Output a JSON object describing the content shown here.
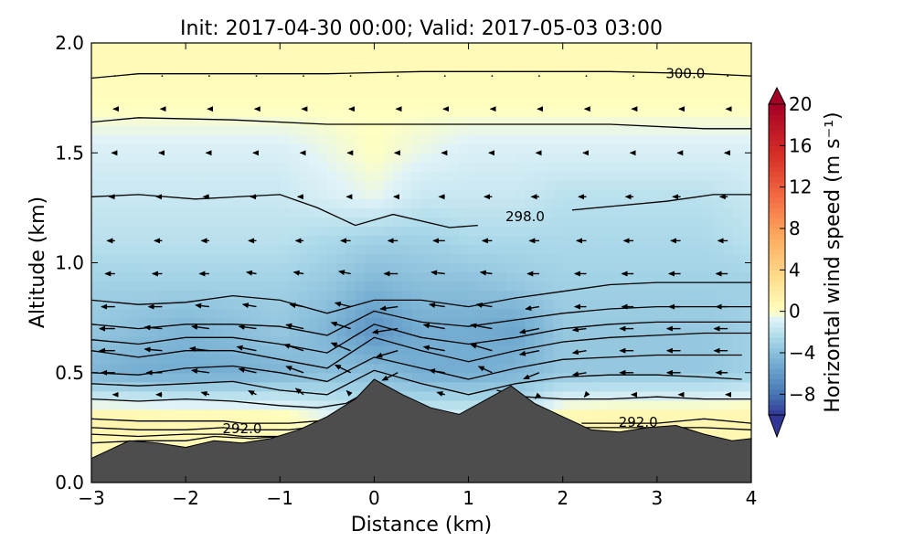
{
  "chart_data": {
    "type": "heatmap",
    "title": "Init: 2017-04-30 00:00; Valid: 2017-05-03 03:00",
    "xlabel": "Distance (km)",
    "ylabel": "Altitude (km)",
    "xlim": [
      -3,
      4
    ],
    "ylim": [
      0.0,
      2.0
    ],
    "x_ticks": [
      -3,
      -2,
      -1,
      0,
      1,
      2,
      3,
      4
    ],
    "x_tick_labels": [
      "−3",
      "−2",
      "−1",
      "0",
      "1",
      "2",
      "3",
      "4"
    ],
    "y_ticks": [
      0.0,
      0.5,
      1.0,
      1.5,
      2.0
    ],
    "y_tick_labels": [
      "0.0",
      "0.5",
      "1.0",
      "1.5",
      "2.0"
    ],
    "colorbar": {
      "label": "Horizontal wind speed (m s⁻¹)",
      "range": [
        -10,
        20
      ],
      "ticks": [
        -8,
        -4,
        0,
        4,
        8,
        12,
        16,
        20
      ],
      "tick_labels": [
        "−8",
        "−4",
        "0",
        "4",
        "8",
        "12",
        "16",
        "20"
      ],
      "colormap": "RdYlBu_r",
      "extend": "both"
    },
    "contour_labels": [
      {
        "text": "300.0",
        "x": 3.3,
        "y": 1.86
      },
      {
        "text": "298.0",
        "x": 1.6,
        "y": 1.21
      },
      {
        "text": "292.0",
        "x": -1.4,
        "y": 0.245
      },
      {
        "text": "292.0",
        "x": 2.8,
        "y": 0.275
      }
    ],
    "terrain": {
      "x": [
        -3,
        -2.8,
        -2.6,
        -2.3,
        -2.0,
        -1.7,
        -1.4,
        -1.1,
        -0.8,
        -0.5,
        -0.2,
        0.0,
        0.3,
        0.6,
        0.9,
        1.2,
        1.45,
        1.7,
        2.0,
        2.3,
        2.6,
        2.9,
        3.2,
        3.5,
        3.8,
        4.0
      ],
      "y": [
        0.11,
        0.15,
        0.19,
        0.18,
        0.16,
        0.19,
        0.18,
        0.2,
        0.24,
        0.3,
        0.38,
        0.47,
        0.4,
        0.34,
        0.31,
        0.38,
        0.44,
        0.36,
        0.3,
        0.24,
        0.23,
        0.25,
        0.26,
        0.22,
        0.19,
        0.2
      ]
    },
    "wind_speed_field": {
      "x": [
        -3,
        -2.5,
        -2,
        -1.5,
        -1,
        -0.5,
        0,
        0.5,
        1,
        1.5,
        2,
        2.5,
        3,
        3.5,
        4
      ],
      "y": [
        0.1,
        0.3,
        0.5,
        0.7,
        0.9,
        1.1,
        1.3,
        1.5,
        1.7,
        1.9
      ],
      "values": [
        [
          0.5,
          0.5,
          0.5,
          0.5,
          0.5,
          0.5,
          0.5,
          0.5,
          0.5,
          0.5,
          0.5,
          0.5,
          0.5,
          0.5,
          0.5
        ],
        [
          1.0,
          1.0,
          0.8,
          0.8,
          0.5,
          -0.5,
          -1.5,
          -1.0,
          -1.0,
          -1.5,
          0.8,
          1.0,
          1.0,
          1.0,
          1.0
        ],
        [
          -4.5,
          -5.0,
          -5.0,
          -5.0,
          -4.5,
          -4.0,
          -4.0,
          -5.0,
          -5.0,
          -4.5,
          -3.5,
          -3.5,
          -3.5,
          -3.5,
          -3.0
        ],
        [
          -3.5,
          -4.0,
          -4.5,
          -4.0,
          -3.5,
          -4.5,
          -6.5,
          -5.0,
          -5.0,
          -5.5,
          -3.5,
          -3.5,
          -3.5,
          -3.5,
          -3.0
        ],
        [
          -3.0,
          -3.0,
          -3.0,
          -3.0,
          -3.0,
          -3.5,
          -4.5,
          -4.0,
          -4.0,
          -3.5,
          -3.0,
          -3.0,
          -3.0,
          -3.0,
          -3.0
        ],
        [
          -2.0,
          -2.0,
          -2.0,
          -2.0,
          -2.0,
          -2.5,
          -3.0,
          -3.0,
          -2.5,
          -2.5,
          -2.5,
          -2.5,
          -2.5,
          -2.5,
          -2.0
        ],
        [
          -1.5,
          -1.5,
          -1.5,
          -1.5,
          -1.5,
          -1.0,
          -0.5,
          -1.5,
          -1.5,
          -1.5,
          -2.0,
          -2.0,
          -2.0,
          -2.0,
          -1.5
        ],
        [
          -1.0,
          -1.0,
          -1.0,
          -1.0,
          -1.0,
          -0.5,
          0.0,
          -0.5,
          -1.0,
          -1.0,
          -1.0,
          -1.0,
          -1.0,
          -1.0,
          -1.0
        ],
        [
          0.0,
          0.0,
          0.0,
          0.0,
          0.0,
          0.0,
          0.0,
          0.0,
          0.0,
          0.0,
          0.0,
          0.0,
          0.0,
          0.0,
          0.0
        ],
        [
          0.5,
          0.5,
          0.5,
          0.5,
          0.5,
          0.5,
          0.5,
          0.5,
          0.5,
          0.5,
          0.5,
          0.5,
          0.5,
          0.5,
          0.5
        ]
      ]
    },
    "theta_contours": [
      {
        "x": [
          -3,
          -2.5,
          -1.5,
          -0.5,
          0.5,
          1.5,
          2.5,
          3.5,
          4.0
        ],
        "y": [
          1.84,
          1.86,
          1.86,
          1.86,
          1.87,
          1.87,
          1.87,
          1.86,
          1.85
        ]
      },
      {
        "x": [
          -3,
          -2.5,
          -1.5,
          -0.5,
          0.5,
          1.5,
          2.5,
          3.5,
          4.0
        ],
        "y": [
          1.64,
          1.66,
          1.65,
          1.63,
          1.63,
          1.63,
          1.63,
          1.61,
          1.61
        ]
      },
      {
        "x": [
          -3,
          -2.5,
          -1.9,
          -1.0,
          -0.6,
          -0.2,
          0.2,
          0.8,
          1.1
        ],
        "y": [
          1.3,
          1.31,
          1.29,
          1.31,
          1.25,
          1.17,
          1.22,
          1.16,
          1.17
        ]
      },
      {
        "x": [
          2.1,
          2.6,
          3.1,
          3.6,
          4.0
        ],
        "y": [
          1.24,
          1.26,
          1.28,
          1.31,
          1.31
        ]
      },
      {
        "x": [
          -3,
          -2.5,
          -2.0,
          -1.5,
          -1.0,
          -0.5,
          0.0,
          0.5,
          1.0,
          1.5,
          2.0,
          2.5,
          3.0,
          3.5,
          4.0
        ],
        "y": [
          0.83,
          0.81,
          0.82,
          0.85,
          0.83,
          0.77,
          0.83,
          0.83,
          0.8,
          0.84,
          0.87,
          0.9,
          0.91,
          0.91,
          0.91
        ]
      },
      {
        "x": [
          -3,
          -2.5,
          -2.0,
          -1.5,
          -1.0,
          -0.5,
          0.0,
          0.5,
          1.0,
          1.5,
          2.0,
          2.5,
          3.0,
          3.5,
          4.0
        ],
        "y": [
          0.72,
          0.7,
          0.72,
          0.72,
          0.71,
          0.67,
          0.78,
          0.73,
          0.71,
          0.74,
          0.77,
          0.79,
          0.8,
          0.8,
          0.8
        ]
      },
      {
        "x": [
          -3,
          -2.5,
          -2.0,
          -1.5,
          -1.0,
          -0.5,
          0.0,
          0.5,
          1.0,
          1.5,
          2.0,
          2.5,
          3.0,
          3.5,
          4.0
        ],
        "y": [
          0.65,
          0.63,
          0.66,
          0.66,
          0.63,
          0.59,
          0.72,
          0.66,
          0.63,
          0.66,
          0.7,
          0.72,
          0.73,
          0.73,
          0.73
        ]
      },
      {
        "x": [
          -3,
          -2.5,
          -2.0,
          -1.5,
          -1.0,
          -0.5,
          0.0,
          0.5,
          1.0,
          1.5,
          2.0,
          2.5,
          3.0,
          3.5,
          4.0
        ],
        "y": [
          0.6,
          0.57,
          0.6,
          0.6,
          0.56,
          0.52,
          0.66,
          0.6,
          0.55,
          0.6,
          0.64,
          0.66,
          0.67,
          0.68,
          0.68
        ]
      },
      {
        "x": [
          -3,
          -2.5,
          -2.0,
          -1.5,
          -1.0,
          -0.5,
          0.0,
          0.5,
          1.0,
          1.5,
          2.0,
          2.5,
          3.0,
          3.5,
          3.9
        ],
        "y": [
          0.5,
          0.49,
          0.52,
          0.53,
          0.5,
          0.46,
          0.57,
          0.52,
          0.47,
          0.52,
          0.56,
          0.57,
          0.58,
          0.58,
          0.58
        ]
      },
      {
        "x": [
          -3,
          -2.5,
          -2.0,
          -1.5,
          -1.0,
          -0.5,
          0.0,
          0.5,
          1.0,
          1.5,
          2.0,
          2.5,
          3.0,
          3.5,
          3.9
        ],
        "y": [
          0.45,
          0.44,
          0.45,
          0.46,
          0.42,
          0.4,
          0.51,
          0.45,
          0.4,
          0.45,
          0.48,
          0.49,
          0.49,
          0.48,
          0.47
        ]
      },
      {
        "x": [
          -3,
          -2.5,
          -2.0,
          -1.5,
          -1.0,
          -0.6,
          -0.3,
          0.0
        ],
        "y": [
          0.38,
          0.37,
          0.38,
          0.37,
          0.35,
          0.34,
          0.36,
          0.43
        ]
      },
      {
        "x": [
          1.3,
          1.6,
          2.0,
          2.5,
          3.0,
          3.5,
          4.0
        ],
        "y": [
          0.42,
          0.39,
          0.38,
          0.38,
          0.39,
          0.38,
          0.38
        ]
      },
      {
        "x": [
          -3,
          -2.5,
          -2.0,
          -1.6,
          -1.4,
          -0.9,
          -0.6,
          -0.4
        ],
        "y": [
          0.29,
          0.28,
          0.28,
          0.28,
          0.27,
          0.27,
          0.28,
          0.29
        ]
      },
      {
        "x": [
          -3,
          -2.5,
          -2.0,
          -1.6,
          -1.4,
          -0.9,
          -0.7
        ],
        "y": [
          0.25,
          0.24,
          0.24,
          0.25,
          0.24,
          0.24,
          0.25
        ]
      },
      {
        "x": [
          -3,
          -2.5,
          -2.0,
          -1.6,
          -1.4,
          -1.0,
          -0.8
        ],
        "y": [
          0.22,
          0.21,
          0.22,
          0.22,
          0.21,
          0.21,
          0.22
        ]
      },
      {
        "x": [
          -3,
          -2.5,
          -2.0,
          -1.7,
          -1.3,
          -1.0
        ],
        "y": [
          0.18,
          0.19,
          0.19,
          0.21,
          0.2,
          0.21
        ]
      },
      {
        "x": [
          2.2,
          2.5,
          3.0,
          3.5,
          4.0
        ],
        "y": [
          0.27,
          0.27,
          0.27,
          0.29,
          0.27
        ]
      },
      {
        "x": [
          2.0,
          2.5,
          3.0,
          3.5,
          4.0
        ],
        "y": [
          0.25,
          0.25,
          0.25,
          0.25,
          0.24
        ]
      }
    ],
    "wind_vectors": {
      "x": [
        -2.75,
        -2.25,
        -1.75,
        -1.25,
        -0.75,
        -0.25,
        0.25,
        0.75,
        1.25,
        1.75,
        2.25,
        2.75,
        3.25,
        3.75
      ],
      "y": [
        0.4,
        0.5,
        0.6,
        0.7,
        0.8,
        0.95,
        1.1,
        1.3,
        1.5,
        1.7,
        1.85
      ],
      "u": [
        [
          -0.5,
          -1.5,
          -2.0,
          -2.0,
          -2.0,
          -1.0,
          -2.0,
          -2.0,
          -1.5,
          -1.0,
          -0.5,
          -0.5,
          -0.5,
          -0.5
        ],
        [
          -3.5,
          -4.0,
          -4.5,
          -4.5,
          -4.5,
          -4.0,
          -4.0,
          -4.0,
          -3.5,
          -4.0,
          -3.5,
          -3.5,
          -3.5,
          -3.0
        ],
        [
          -4.0,
          -4.5,
          -5.0,
          -5.0,
          -5.0,
          -5.0,
          -5.5,
          -5.5,
          -5.5,
          -5.0,
          -3.5,
          -3.5,
          -3.5,
          -3.5
        ],
        [
          -4.0,
          -4.5,
          -4.5,
          -4.5,
          -4.5,
          -5.0,
          -6.5,
          -5.5,
          -5.5,
          -5.0,
          -3.5,
          -3.5,
          -3.5,
          -3.5
        ],
        [
          -3.5,
          -3.5,
          -3.5,
          -3.5,
          -3.5,
          -4.0,
          -4.5,
          -4.0,
          -4.0,
          -3.5,
          -3.0,
          -3.0,
          -3.0,
          -3.0
        ],
        [
          -2.5,
          -2.5,
          -2.5,
          -2.5,
          -2.5,
          -3.0,
          -3.5,
          -3.5,
          -3.0,
          -3.0,
          -3.0,
          -3.0,
          -3.0,
          -3.0
        ],
        [
          -2.0,
          -2.0,
          -2.0,
          -2.0,
          -2.0,
          -2.5,
          -2.5,
          -3.0,
          -2.5,
          -2.5,
          -2.5,
          -2.5,
          -2.5,
          -2.5
        ],
        [
          -1.5,
          -1.5,
          -1.5,
          -1.5,
          -1.5,
          -1.0,
          -1.0,
          -1.5,
          -2.0,
          -2.0,
          -2.0,
          -2.0,
          -2.0,
          -2.0
        ],
        [
          -0.8,
          -0.8,
          -0.8,
          -0.8,
          -0.8,
          -0.8,
          -0.8,
          -0.8,
          -0.8,
          -0.8,
          -0.8,
          -0.8,
          -0.8,
          -0.8
        ],
        [
          -0.4,
          -0.4,
          -0.4,
          -0.4,
          -0.4,
          -0.4,
          -0.4,
          -0.4,
          -0.4,
          -0.4,
          -0.4,
          -0.4,
          -0.4,
          -0.4
        ],
        [
          0.0,
          0.0,
          0.0,
          0.0,
          0.0,
          0.0,
          0.0,
          0.0,
          0.0,
          0.0,
          0.0,
          0.0,
          0.0,
          0.0
        ]
      ],
      "w": [
        [
          0.0,
          0.0,
          0.3,
          0.5,
          0.8,
          0.5,
          -0.8,
          0.3,
          0.5,
          -0.5,
          -0.3,
          0.0,
          0.0,
          0.0
        ],
        [
          0.0,
          0.0,
          0.3,
          0.5,
          0.8,
          1.0,
          -1.0,
          0.3,
          0.8,
          -0.8,
          -0.3,
          0.0,
          0.0,
          0.0
        ],
        [
          0.0,
          0.2,
          0.3,
          0.5,
          0.8,
          1.0,
          -0.8,
          0.5,
          0.8,
          -0.5,
          -0.3,
          0.0,
          0.0,
          0.0
        ],
        [
          0.0,
          0.2,
          0.3,
          0.3,
          0.5,
          0.8,
          -0.5,
          0.5,
          0.5,
          -0.5,
          -0.2,
          0.0,
          0.0,
          0.0
        ],
        [
          0.0,
          0.0,
          0.2,
          0.3,
          0.3,
          0.5,
          -0.3,
          0.3,
          0.3,
          -0.3,
          0.0,
          0.0,
          0.0,
          0.0
        ],
        [
          0.0,
          0.0,
          0.0,
          0.2,
          0.2,
          0.3,
          0.0,
          0.2,
          0.2,
          0.0,
          0.0,
          0.0,
          0.0,
          0.0
        ],
        [
          0.0,
          0.0,
          0.0,
          0.0,
          0.0,
          0.0,
          0.0,
          0.0,
          0.0,
          0.0,
          0.0,
          0.0,
          0.0,
          0.0
        ],
        [
          0.0,
          0.0,
          0.0,
          0.0,
          0.0,
          0.0,
          0.0,
          0.0,
          0.0,
          0.0,
          0.0,
          0.0,
          0.0,
          0.0
        ],
        [
          0.0,
          0.0,
          0.0,
          0.0,
          0.0,
          0.0,
          0.0,
          0.0,
          0.0,
          0.0,
          0.0,
          0.0,
          0.0,
          0.0
        ],
        [
          0.0,
          0.0,
          0.0,
          0.0,
          0.0,
          0.0,
          0.0,
          0.0,
          0.0,
          0.0,
          0.0,
          0.0,
          0.0,
          0.0
        ],
        [
          0.0,
          0.0,
          0.0,
          0.0,
          0.0,
          0.0,
          0.0,
          0.0,
          0.0,
          0.0,
          0.0,
          0.0,
          0.0,
          0.0
        ]
      ]
    }
  }
}
